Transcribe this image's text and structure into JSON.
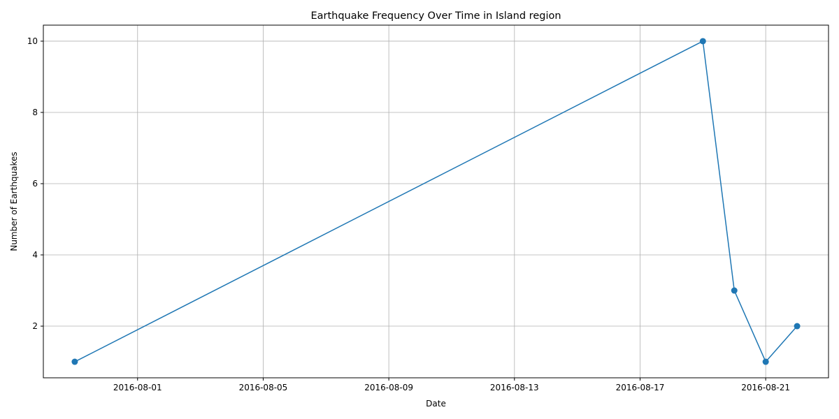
{
  "chart_data": {
    "type": "line",
    "title": "Earthquake Frequency Over Time in Island region",
    "xlabel": "Date",
    "ylabel": "Number of Earthquakes",
    "x": [
      "2016-07-30",
      "2016-08-19",
      "2016-08-20",
      "2016-08-21",
      "2016-08-22"
    ],
    "series": [
      {
        "values": [
          1,
          10,
          3,
          1,
          2
        ],
        "color": "#1f77b4"
      }
    ],
    "xlim": [
      "2016-07-29",
      "2016-08-23"
    ],
    "ylim": [
      0.55,
      10.45
    ],
    "x_ticks": [
      "2016-08-01",
      "2016-08-05",
      "2016-08-09",
      "2016-08-13",
      "2016-08-17",
      "2016-08-21"
    ],
    "y_ticks": [
      2,
      4,
      6,
      8,
      10
    ],
    "grid": true,
    "marker": "circle"
  }
}
